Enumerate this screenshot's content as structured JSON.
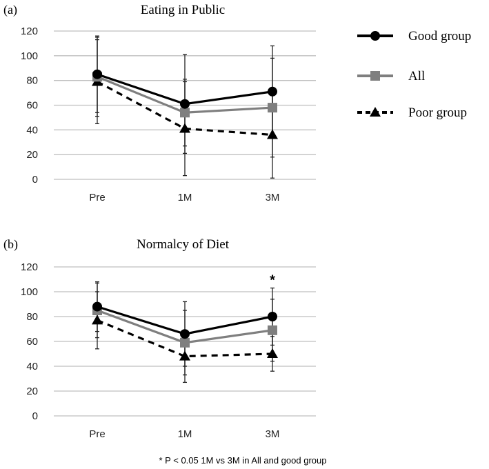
{
  "chart_data": [
    {
      "type": "line",
      "panel_label": "(a)",
      "title": "Eating in Public",
      "categories": [
        "Pre",
        "1M",
        "3M"
      ],
      "ylim": [
        0,
        120
      ],
      "yticks": [
        "0",
        "20",
        "40",
        "60",
        "80",
        "100",
        "120"
      ],
      "grid": true,
      "series": [
        {
          "name": "Good group",
          "values": [
            85,
            61,
            71
          ],
          "err": [
            31,
            40,
            37
          ]
        },
        {
          "name": "All",
          "values": [
            83,
            54,
            58
          ],
          "err": [
            32,
            27,
            40
          ]
        },
        {
          "name": "Poor group",
          "values": [
            79,
            41,
            36
          ],
          "err": [
            34,
            38,
            35
          ]
        }
      ],
      "annotations": []
    },
    {
      "type": "line",
      "panel_label": "(b)",
      "title": "Normalcy of Diet",
      "categories": [
        "Pre",
        "1M",
        "3M"
      ],
      "ylim": [
        0,
        120
      ],
      "yticks": [
        "0",
        "20",
        "40",
        "60",
        "80",
        "100",
        "120"
      ],
      "grid": true,
      "series": [
        {
          "name": "Good group",
          "values": [
            88,
            66,
            80
          ],
          "err": [
            20,
            26,
            23
          ]
        },
        {
          "name": "All",
          "values": [
            85,
            59,
            69
          ],
          "err": [
            22,
            26,
            25
          ]
        },
        {
          "name": "Poor group",
          "values": [
            77,
            48,
            50
          ],
          "err": [
            23,
            21,
            14
          ]
        }
      ],
      "annotations": [
        {
          "text": "*",
          "category": "3M"
        }
      ]
    }
  ],
  "legend": {
    "placement": "right",
    "items": [
      "Good group",
      "All",
      "Poor group"
    ]
  },
  "footnote": "* P < 0.05  1M vs 3M in All and good group",
  "colors": {
    "good": "#000000",
    "all": "#7f7f7f",
    "poor": "#000000",
    "grid": "#bfbfbf"
  }
}
